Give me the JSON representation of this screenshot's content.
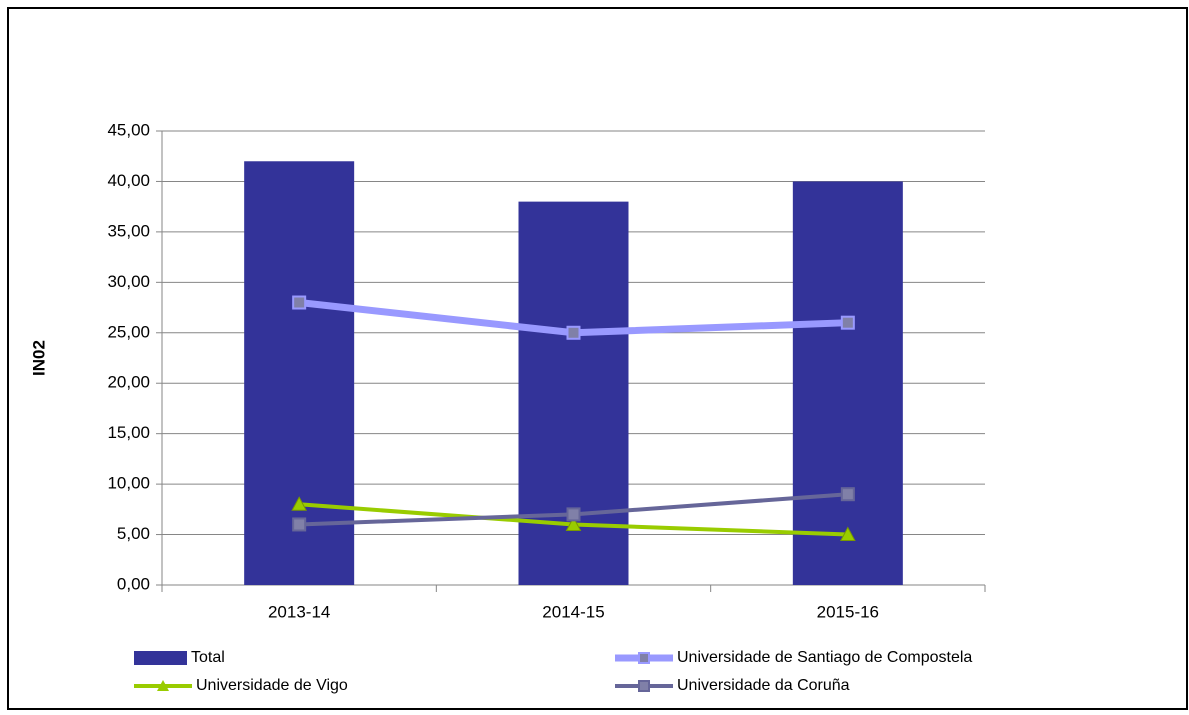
{
  "chart_data": {
    "type": "combo",
    "y_label": "IN02",
    "categories": [
      "2013-14",
      "2014-15",
      "2015-16"
    ],
    "series": [
      {
        "name": "Total",
        "type": "bar",
        "color": "#333399",
        "values": [
          42,
          38,
          40
        ]
      },
      {
        "name": "Universidade de Santiago de Compostela",
        "type": "line",
        "marker": "square",
        "color": "#9999ff",
        "values": [
          28,
          25,
          26
        ]
      },
      {
        "name": "Universidade de Vigo",
        "type": "line",
        "marker": "triangle",
        "color": "#99cc00",
        "values": [
          8,
          6,
          5
        ]
      },
      {
        "name": "Universidade da Coruña",
        "type": "line",
        "marker": "square",
        "color": "#666699",
        "values": [
          6,
          7,
          9
        ]
      }
    ],
    "ylim": [
      0,
      45
    ],
    "yticks": [
      {
        "value": 0,
        "label": "0,00"
      },
      {
        "value": 5,
        "label": "5,00"
      },
      {
        "value": 10,
        "label": "10,00"
      },
      {
        "value": 15,
        "label": "15,00"
      },
      {
        "value": 20,
        "label": "20,00"
      },
      {
        "value": 25,
        "label": "25,00"
      },
      {
        "value": 30,
        "label": "30,00"
      },
      {
        "value": 35,
        "label": "35,00"
      },
      {
        "value": 40,
        "label": "40,00"
      },
      {
        "value": 45,
        "label": "45,00"
      }
    ],
    "grid": true,
    "legend": "bottom"
  }
}
